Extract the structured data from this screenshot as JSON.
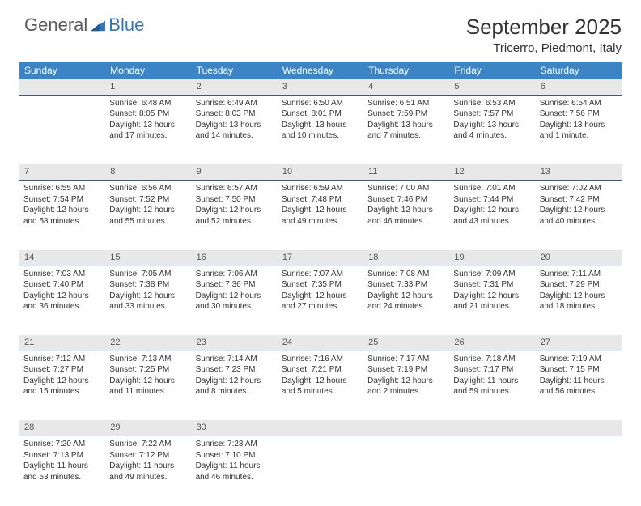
{
  "brand": {
    "part1": "General",
    "part2": "Blue"
  },
  "title": "September 2025",
  "location": "Tricerro, Piedmont, Italy",
  "colors": {
    "header_bg": "#3b85c6",
    "header_text": "#ffffff",
    "daynum_bg": "#e8e8e8",
    "daynum_border": "#3b5a7a",
    "body_text": "#333333",
    "logo_gray": "#5a5a5a",
    "logo_blue": "#2f77bb"
  },
  "weekdays": [
    "Sunday",
    "Monday",
    "Tuesday",
    "Wednesday",
    "Thursday",
    "Friday",
    "Saturday"
  ],
  "weeks": [
    {
      "nums": [
        "",
        "1",
        "2",
        "3",
        "4",
        "5",
        "6"
      ],
      "cells": [
        "",
        "Sunrise: 6:48 AM\nSunset: 8:05 PM\nDaylight: 13 hours and 17 minutes.",
        "Sunrise: 6:49 AM\nSunset: 8:03 PM\nDaylight: 13 hours and 14 minutes.",
        "Sunrise: 6:50 AM\nSunset: 8:01 PM\nDaylight: 13 hours and 10 minutes.",
        "Sunrise: 6:51 AM\nSunset: 7:59 PM\nDaylight: 13 hours and 7 minutes.",
        "Sunrise: 6:53 AM\nSunset: 7:57 PM\nDaylight: 13 hours and 4 minutes.",
        "Sunrise: 6:54 AM\nSunset: 7:56 PM\nDaylight: 13 hours and 1 minute."
      ]
    },
    {
      "nums": [
        "7",
        "8",
        "9",
        "10",
        "11",
        "12",
        "13"
      ],
      "cells": [
        "Sunrise: 6:55 AM\nSunset: 7:54 PM\nDaylight: 12 hours and 58 minutes.",
        "Sunrise: 6:56 AM\nSunset: 7:52 PM\nDaylight: 12 hours and 55 minutes.",
        "Sunrise: 6:57 AM\nSunset: 7:50 PM\nDaylight: 12 hours and 52 minutes.",
        "Sunrise: 6:59 AM\nSunset: 7:48 PM\nDaylight: 12 hours and 49 minutes.",
        "Sunrise: 7:00 AM\nSunset: 7:46 PM\nDaylight: 12 hours and 46 minutes.",
        "Sunrise: 7:01 AM\nSunset: 7:44 PM\nDaylight: 12 hours and 43 minutes.",
        "Sunrise: 7:02 AM\nSunset: 7:42 PM\nDaylight: 12 hours and 40 minutes."
      ]
    },
    {
      "nums": [
        "14",
        "15",
        "16",
        "17",
        "18",
        "19",
        "20"
      ],
      "cells": [
        "Sunrise: 7:03 AM\nSunset: 7:40 PM\nDaylight: 12 hours and 36 minutes.",
        "Sunrise: 7:05 AM\nSunset: 7:38 PM\nDaylight: 12 hours and 33 minutes.",
        "Sunrise: 7:06 AM\nSunset: 7:36 PM\nDaylight: 12 hours and 30 minutes.",
        "Sunrise: 7:07 AM\nSunset: 7:35 PM\nDaylight: 12 hours and 27 minutes.",
        "Sunrise: 7:08 AM\nSunset: 7:33 PM\nDaylight: 12 hours and 24 minutes.",
        "Sunrise: 7:09 AM\nSunset: 7:31 PM\nDaylight: 12 hours and 21 minutes.",
        "Sunrise: 7:11 AM\nSunset: 7:29 PM\nDaylight: 12 hours and 18 minutes."
      ]
    },
    {
      "nums": [
        "21",
        "22",
        "23",
        "24",
        "25",
        "26",
        "27"
      ],
      "cells": [
        "Sunrise: 7:12 AM\nSunset: 7:27 PM\nDaylight: 12 hours and 15 minutes.",
        "Sunrise: 7:13 AM\nSunset: 7:25 PM\nDaylight: 12 hours and 11 minutes.",
        "Sunrise: 7:14 AM\nSunset: 7:23 PM\nDaylight: 12 hours and 8 minutes.",
        "Sunrise: 7:16 AM\nSunset: 7:21 PM\nDaylight: 12 hours and 5 minutes.",
        "Sunrise: 7:17 AM\nSunset: 7:19 PM\nDaylight: 12 hours and 2 minutes.",
        "Sunrise: 7:18 AM\nSunset: 7:17 PM\nDaylight: 11 hours and 59 minutes.",
        "Sunrise: 7:19 AM\nSunset: 7:15 PM\nDaylight: 11 hours and 56 minutes."
      ]
    },
    {
      "nums": [
        "28",
        "29",
        "30",
        "",
        "",
        "",
        ""
      ],
      "cells": [
        "Sunrise: 7:20 AM\nSunset: 7:13 PM\nDaylight: 11 hours and 53 minutes.",
        "Sunrise: 7:22 AM\nSunset: 7:12 PM\nDaylight: 11 hours and 49 minutes.",
        "Sunrise: 7:23 AM\nSunset: 7:10 PM\nDaylight: 11 hours and 46 minutes.",
        "",
        "",
        "",
        ""
      ]
    }
  ]
}
